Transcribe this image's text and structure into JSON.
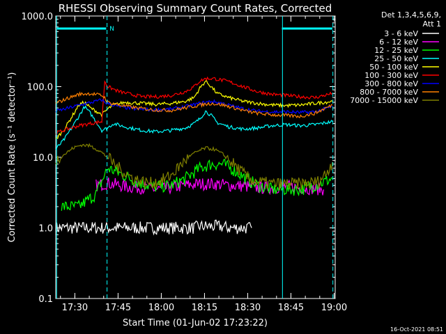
{
  "chart_data": {
    "type": "line",
    "title": "RHESSI Observing Summary Count Rates, Corrected",
    "xlabel": "Start Time (01-Jun-02 17:23:22)",
    "ylabel": "Corrected Count Rate (s⁻¹ detector⁻¹)",
    "yscale": "log",
    "ylim": [
      0.1,
      1000
    ],
    "xlim_minutes": [
      0,
      97
    ],
    "y_ticks": [
      {
        "value": 1000,
        "label": "1000.0"
      },
      {
        "value": 100,
        "label": "100.0"
      },
      {
        "value": 10,
        "label": "10.0"
      },
      {
        "value": 1,
        "label": "1.0"
      },
      {
        "value": 0.1,
        "label": "0.1"
      }
    ],
    "x_ticks": [
      {
        "minute": 6.633,
        "label": "17:30"
      },
      {
        "minute": 21.633,
        "label": "17:45"
      },
      {
        "minute": 36.633,
        "label": "18:00"
      },
      {
        "minute": 51.633,
        "label": "18:15"
      },
      {
        "minute": 66.633,
        "label": "18:30"
      },
      {
        "minute": 81.633,
        "label": "18:45"
      },
      {
        "minute": 96.633,
        "label": "19:00"
      }
    ],
    "legend_header": [
      "Det 1,3,4,5,6,9,",
      "Att 1"
    ],
    "series": [
      {
        "name": "3 - 6 keV",
        "color": "#ffffff",
        "x": [
          0,
          10,
          14,
          17,
          18,
          19,
          20,
          22,
          24,
          28,
          40,
          44,
          45,
          48,
          50,
          53,
          55,
          57,
          60,
          64,
          67,
          68
        ],
        "y": [
          1.0,
          1.0,
          1.0,
          1.0,
          1.0,
          1.0,
          1.0,
          1.0,
          1.0,
          1.0,
          1.0,
          1.0,
          1.0,
          1.0,
          1.05,
          1.05,
          1.05,
          1.05,
          1.0,
          1.0,
          1.0,
          1.0
        ]
      },
      {
        "name": "6 - 12 keV",
        "color": "#ff00ff",
        "x": [
          14,
          18,
          21,
          25,
          30,
          35,
          40,
          45,
          50,
          55,
          60,
          65,
          70,
          75,
          80,
          85,
          90,
          93
        ],
        "y": [
          4.0,
          4.3,
          4.1,
          3.8,
          3.7,
          3.5,
          3.7,
          4.0,
          4.2,
          4.2,
          4.0,
          3.9,
          3.7,
          3.7,
          3.9,
          3.7,
          3.6,
          3.5
        ]
      },
      {
        "name": "12 - 25 keV",
        "color": "#00ff00",
        "x": [
          2,
          8,
          14,
          18,
          22,
          28,
          34,
          40,
          45,
          50,
          54,
          58,
          62,
          66,
          70,
          75,
          80,
          85,
          90,
          96
        ],
        "y": [
          2.0,
          2.0,
          3.0,
          7.0,
          6.0,
          4.5,
          3.8,
          4.0,
          5.0,
          7.0,
          8.0,
          8.0,
          6.5,
          5.0,
          4.0,
          3.5,
          3.5,
          3.5,
          4.0,
          5.0
        ]
      },
      {
        "name": "25 - 50 keV",
        "color": "#00ffff",
        "x": [
          0,
          3,
          6,
          8,
          10,
          12,
          14,
          16,
          18,
          20,
          24,
          30,
          35,
          40,
          45,
          48,
          50,
          52,
          54,
          56,
          60,
          65,
          70,
          75,
          80,
          85,
          90,
          96
        ],
        "y": [
          13,
          18,
          28,
          38,
          52,
          42,
          32,
          24,
          26,
          30,
          27,
          24,
          23,
          24,
          26,
          30,
          35,
          45,
          39,
          31,
          27,
          25,
          26,
          28,
          29,
          28,
          29,
          32
        ]
      },
      {
        "name": "50 - 100 keV",
        "color": "#ffff00",
        "x": [
          0,
          3,
          6,
          8,
          10,
          12,
          14,
          16,
          18,
          20,
          24,
          30,
          35,
          40,
          45,
          48,
          50,
          52,
          54,
          56,
          60,
          65,
          70,
          75,
          80,
          85,
          90,
          96
        ],
        "y": [
          18,
          25,
          40,
          55,
          60,
          50,
          45,
          40,
          48,
          55,
          60,
          58,
          56,
          58,
          62,
          70,
          95,
          120,
          100,
          80,
          70,
          62,
          58,
          55,
          54,
          55,
          58,
          62
        ]
      },
      {
        "name": "100 - 300 keV",
        "color": "#ff0000",
        "x": [
          0,
          4,
          8,
          12,
          16,
          17,
          18,
          22,
          26,
          30,
          35,
          40,
          45,
          48,
          50,
          52,
          55,
          60,
          65,
          70,
          75,
          80,
          85,
          90,
          96
        ],
        "y": [
          22,
          25,
          28,
          30,
          32,
          120,
          100,
          85,
          78,
          72,
          72,
          75,
          85,
          100,
          120,
          130,
          130,
          118,
          100,
          85,
          78,
          75,
          72,
          70,
          80
        ]
      },
      {
        "name": "300 - 800 keV",
        "color": "#0000ff",
        "x": [
          0,
          3,
          6,
          10,
          14,
          16,
          17,
          18,
          22,
          28,
          34,
          40,
          45,
          50,
          54,
          58,
          62,
          66,
          70,
          75,
          80,
          85,
          90,
          96
        ],
        "y": [
          45,
          48,
          52,
          57,
          62,
          65,
          60,
          58,
          52,
          48,
          47,
          48,
          52,
          58,
          62,
          58,
          52,
          48,
          45,
          44,
          44,
          43,
          44,
          52
        ]
      },
      {
        "name": "800 - 7000 keV",
        "color": "#ff8000",
        "x": [
          0,
          4,
          8,
          12,
          16,
          17,
          18,
          22,
          28,
          34,
          40,
          45,
          50,
          54,
          58,
          62,
          66,
          70,
          75,
          80,
          85,
          90,
          96
        ],
        "y": [
          58,
          68,
          78,
          80,
          75,
          70,
          60,
          55,
          50,
          47,
          46,
          50,
          55,
          58,
          55,
          50,
          45,
          42,
          40,
          39,
          38,
          42,
          55
        ]
      },
      {
        "name": "7000 - 15000 keV",
        "color": "#808000",
        "x": [
          0,
          3,
          6,
          9,
          12,
          15,
          18,
          21,
          24,
          27,
          30,
          33,
          36,
          40,
          43,
          46,
          49,
          52,
          55,
          58,
          61,
          64,
          67,
          70,
          73,
          76,
          79,
          82,
          85,
          88,
          91,
          94,
          96
        ],
        "y": [
          9,
          11,
          13.5,
          15,
          14.5,
          12.5,
          10,
          7.5,
          6,
          5,
          4.5,
          4.3,
          4.5,
          5.5,
          7.5,
          10,
          12,
          13.5,
          13,
          11,
          8.5,
          6.5,
          5,
          4.5,
          4.3,
          4.2,
          4.2,
          4.2,
          4.2,
          4.3,
          4.5,
          6,
          8.5
        ]
      }
    ],
    "top_bars": [
      {
        "x_start": 0.5,
        "x_end": 17.5
      },
      {
        "x_start": 78.5,
        "x_end": 96
      }
    ],
    "top_bar_color": "#00ffff",
    "bar_marker": {
      "x": 19.5,
      "label": "N"
    },
    "vertical_lines": [
      {
        "x": 0.3,
        "style": "solid"
      },
      {
        "x": 17.8,
        "style": "dashed"
      },
      {
        "x": 78.7,
        "style": "solid"
      },
      {
        "x": 96.2,
        "style": "dashed"
      }
    ],
    "timestamp": "16-Oct-2021 08:51"
  }
}
